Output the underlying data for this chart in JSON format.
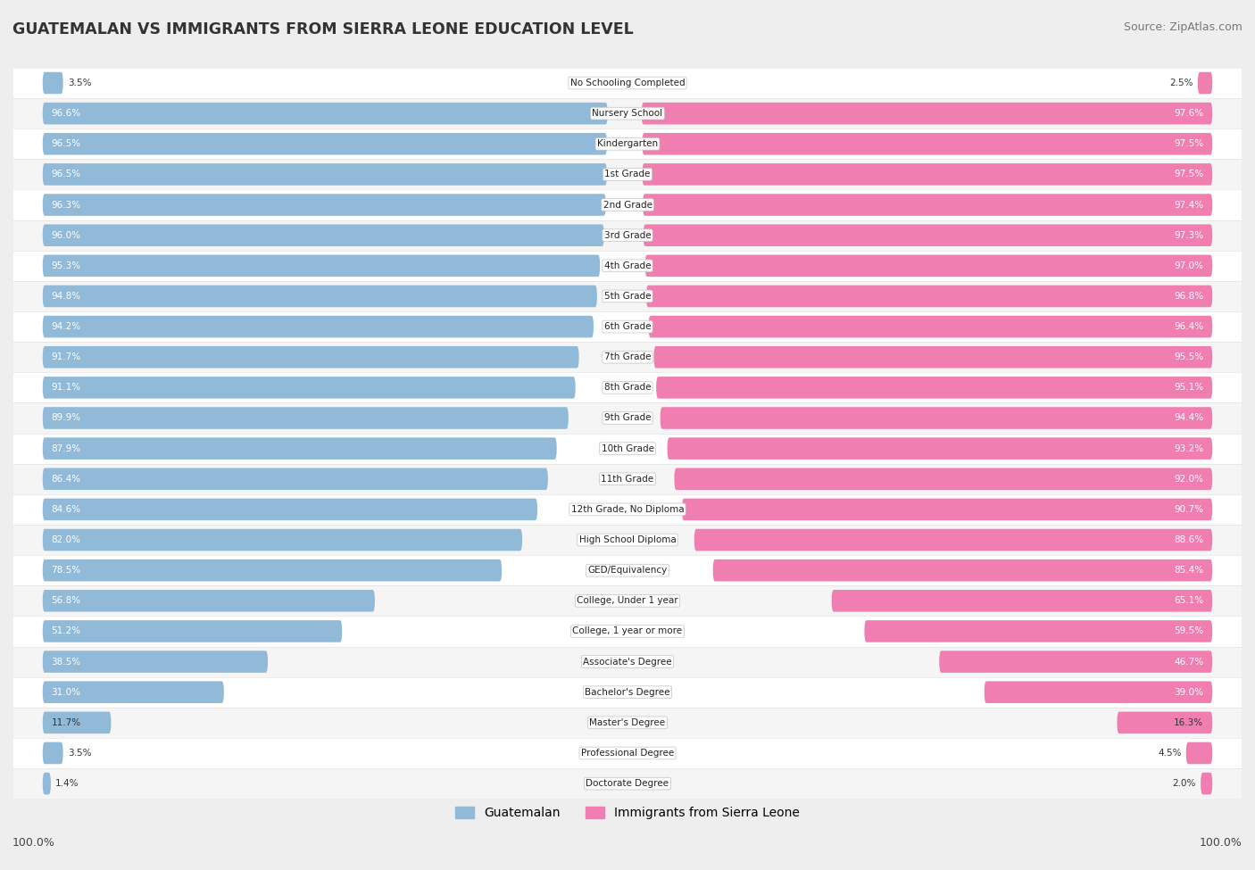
{
  "title": "GUATEMALAN VS IMMIGRANTS FROM SIERRA LEONE EDUCATION LEVEL",
  "source": "Source: ZipAtlas.com",
  "categories": [
    "No Schooling Completed",
    "Nursery School",
    "Kindergarten",
    "1st Grade",
    "2nd Grade",
    "3rd Grade",
    "4th Grade",
    "5th Grade",
    "6th Grade",
    "7th Grade",
    "8th Grade",
    "9th Grade",
    "10th Grade",
    "11th Grade",
    "12th Grade, No Diploma",
    "High School Diploma",
    "GED/Equivalency",
    "College, Under 1 year",
    "College, 1 year or more",
    "Associate's Degree",
    "Bachelor's Degree",
    "Master's Degree",
    "Professional Degree",
    "Doctorate Degree"
  ],
  "guatemalan": [
    3.5,
    96.6,
    96.5,
    96.5,
    96.3,
    96.0,
    95.3,
    94.8,
    94.2,
    91.7,
    91.1,
    89.9,
    87.9,
    86.4,
    84.6,
    82.0,
    78.5,
    56.8,
    51.2,
    38.5,
    31.0,
    11.7,
    3.5,
    1.4
  ],
  "sierra_leone": [
    2.5,
    97.6,
    97.5,
    97.5,
    97.4,
    97.3,
    97.0,
    96.8,
    96.4,
    95.5,
    95.1,
    94.4,
    93.2,
    92.0,
    90.7,
    88.6,
    85.4,
    65.1,
    59.5,
    46.7,
    39.0,
    16.3,
    4.5,
    2.0
  ],
  "blue_color": "#90BAD8",
  "pink_color": "#F07EB0",
  "bg_color": "#EEEEEE",
  "legend_guatemalan": "Guatemalan",
  "legend_sierra_leone": "Immigrants from Sierra Leone"
}
